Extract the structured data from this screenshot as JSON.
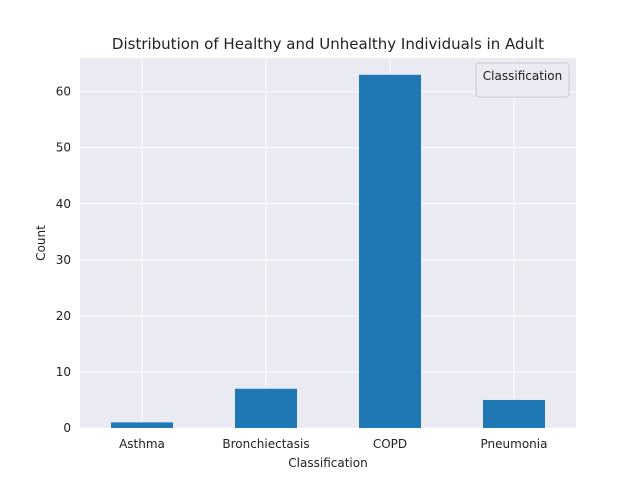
{
  "chart_data": {
    "type": "bar",
    "title": "Distribution of Healthy and Unhealthy Individuals in Adult",
    "xlabel": "Classification",
    "ylabel": "Count",
    "categories": [
      "Asthma",
      "Bronchiectasis",
      "COPD",
      "Pneumonia"
    ],
    "values": [
      1,
      7,
      63,
      5
    ],
    "ylim": [
      0,
      66
    ],
    "yticks": [
      0,
      10,
      20,
      30,
      40,
      50,
      60
    ],
    "grid": true,
    "legend": {
      "title": "Classification",
      "position": "top-right"
    },
    "colors": {
      "bar": "#1f77b4",
      "plot_background": "#eaeaf2",
      "grid": "#ffffff"
    }
  }
}
